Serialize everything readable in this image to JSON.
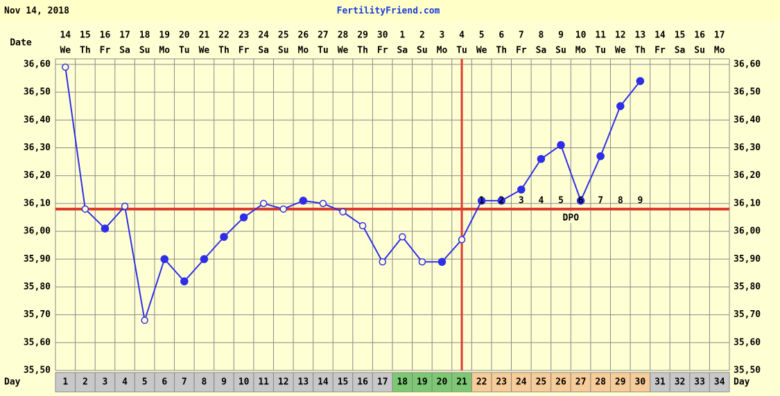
{
  "chart_data": {
    "type": "line",
    "date": "Nov 14, 2018",
    "site": "FertilityFriend.com",
    "date_label": "Date",
    "day_label": "Day",
    "dpo_label": "DPO",
    "dates": [
      14,
      15,
      16,
      17,
      18,
      19,
      20,
      21,
      22,
      23,
      24,
      25,
      26,
      27,
      28,
      29,
      30,
      1,
      2,
      3,
      4,
      5,
      6,
      7,
      8,
      9,
      10,
      11,
      12,
      13,
      14,
      15,
      16,
      17
    ],
    "weekdays": [
      "We",
      "Th",
      "Fr",
      "Sa",
      "Su",
      "Mo",
      "Tu",
      "We",
      "Th",
      "Fr",
      "Sa",
      "Su",
      "Mo",
      "Tu",
      "We",
      "Th",
      "Fr",
      "Sa",
      "Su",
      "Mo",
      "Tu",
      "We",
      "Th",
      "Fr",
      "Sa",
      "Su",
      "Mo",
      "Tu",
      "We",
      "Th",
      "Fr",
      "Sa",
      "Su",
      "Mo"
    ],
    "days": [
      1,
      2,
      3,
      4,
      5,
      6,
      7,
      8,
      9,
      10,
      11,
      12,
      13,
      14,
      15,
      16,
      17,
      18,
      19,
      20,
      21,
      22,
      23,
      24,
      25,
      26,
      27,
      28,
      29,
      30,
      31,
      32,
      33,
      34
    ],
    "day_colors": [
      "#c8c8c8",
      "#c8c8c8",
      "#c8c8c8",
      "#c8c8c8",
      "#c8c8c8",
      "#c8c8c8",
      "#c8c8c8",
      "#c8c8c8",
      "#c8c8c8",
      "#c8c8c8",
      "#c8c8c8",
      "#c8c8c8",
      "#c8c8c8",
      "#c8c8c8",
      "#c8c8c8",
      "#c8c8c8",
      "#c8c8c8",
      "#7dc873",
      "#7dc873",
      "#7dc873",
      "#7dc873",
      "#f7cc98",
      "#f7cc98",
      "#f7cc98",
      "#f7cc98",
      "#f7cc98",
      "#f7cc98",
      "#f7cc98",
      "#f7cc98",
      "#f7cc98",
      "#c8c8c8",
      "#c8c8c8",
      "#c8c8c8",
      "#c8c8c8"
    ],
    "values": [
      36.59,
      36.08,
      36.01,
      36.09,
      35.68,
      35.9,
      35.82,
      35.9,
      35.98,
      36.05,
      36.1,
      36.08,
      36.11,
      36.1,
      36.07,
      36.02,
      35.89,
      35.98,
      35.89,
      35.89,
      35.97,
      36.11,
      36.11,
      36.15,
      36.26,
      36.31,
      36.11,
      36.27,
      36.45,
      36.54,
      null,
      null,
      null,
      null
    ],
    "open": [
      true,
      true,
      false,
      true,
      true,
      false,
      false,
      false,
      false,
      false,
      true,
      true,
      false,
      true,
      true,
      true,
      true,
      true,
      true,
      false,
      true,
      false,
      false,
      false,
      false,
      false,
      false,
      false,
      false,
      false,
      false,
      false,
      false,
      false
    ],
    "dpo": [
      null,
      null,
      null,
      null,
      null,
      null,
      null,
      null,
      null,
      null,
      null,
      null,
      null,
      null,
      null,
      null,
      null,
      null,
      null,
      null,
      null,
      1,
      2,
      3,
      4,
      5,
      6,
      7,
      8,
      9,
      null,
      null,
      null,
      null
    ],
    "color": "#2e2ee6",
    "coverline": 36.08,
    "ovulation_day": 21,
    "line_color": "#dd3b2c",
    "grid": true,
    "ylim": [
      35.5,
      36.6
    ],
    "yticks": [
      {
        "value": 35.5,
        "label": "35,50"
      },
      {
        "value": 35.6,
        "label": "35,60"
      },
      {
        "value": 35.7,
        "label": "35,70"
      },
      {
        "value": 35.8,
        "label": "35,80"
      },
      {
        "value": 35.9,
        "label": "35,90"
      },
      {
        "value": 36.0,
        "label": "36,00"
      },
      {
        "value": 36.1,
        "label": "36,10"
      },
      {
        "value": 36.2,
        "label": "36,20"
      },
      {
        "value": 36.3,
        "label": "36,30"
      },
      {
        "value": 36.4,
        "label": "36,40"
      },
      {
        "value": 36.5,
        "label": "36,50"
      },
      {
        "value": 36.6,
        "label": "36,60"
      }
    ]
  }
}
